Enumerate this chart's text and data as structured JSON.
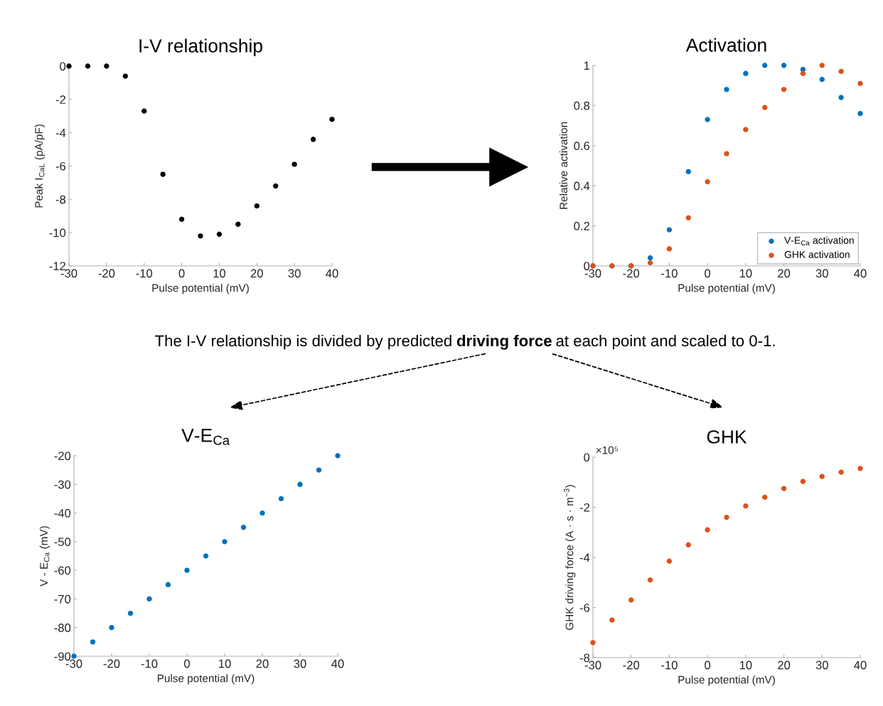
{
  "chart_data": [
    {
      "type": "scatter",
      "title": "I-V relationship",
      "xlabel": "Pulse potential (mV)",
      "ylabel": "Peak I$_{CaL}$ (pA/pF)",
      "x": [
        -30,
        -25,
        -20,
        -15,
        -10,
        -5,
        0,
        5,
        10,
        15,
        20,
        25,
        30,
        35,
        40
      ],
      "series": [
        {
          "color": "#000000",
          "values": [
            0,
            0,
            0,
            -0.6,
            -2.7,
            -6.5,
            -9.2,
            -10.2,
            -10.1,
            -9.5,
            -8.4,
            -7.2,
            -5.9,
            -4.4,
            -3.2
          ]
        }
      ],
      "xlim": [
        -30,
        40
      ],
      "xticks": [
        -30,
        -20,
        -10,
        0,
        10,
        20,
        30,
        40
      ],
      "ylim": [
        -12,
        0
      ],
      "yticks": [
        -12,
        -10,
        -8,
        -6,
        -4,
        -2,
        0
      ],
      "marker": "circle",
      "grid": false,
      "legend": false,
      "annotations": [
        "The I-V relationship is divided by predicted",
        "driving force",
        "at each point and scaled to 0-1."
      ]
    },
    {
      "type": "scatter",
      "title": "Activation",
      "xlabel": "Pulse potential (mV)",
      "ylabel": "Relative activation",
      "x": [
        -30,
        -25,
        -20,
        -15,
        -10,
        -5,
        0,
        5,
        10,
        15,
        20,
        25,
        30,
        35,
        40
      ],
      "series": [
        {
          "name": "V-E$_{Ca}$ activation",
          "color": "#0072bd",
          "values": [
            0,
            0,
            0,
            0.04,
            0.18,
            0.47,
            0.73,
            0.88,
            0.96,
            1,
            1,
            0.98,
            0.93,
            0.84,
            0.76
          ]
        },
        {
          "name": "GHK activation",
          "color": "#d95319",
          "values": [
            0,
            0,
            0,
            0.015,
            0.085,
            0.24,
            0.42,
            0.56,
            0.68,
            0.79,
            0.88,
            0.96,
            1,
            0.97,
            0.91
          ]
        }
      ],
      "xlim": [
        -30,
        40
      ],
      "xticks": [
        -30,
        -20,
        -10,
        0,
        10,
        20,
        30,
        40
      ],
      "ylim": [
        0,
        1
      ],
      "yticks": [
        0,
        0.2,
        0.4,
        0.6,
        0.8,
        1
      ],
      "marker": "circle",
      "grid": false,
      "legend": "bottom right"
    },
    {
      "type": "scatter",
      "title": "V-E$_{Ca}$",
      "xlabel": "Pulse potential (mV)",
      "ylabel": "V - E$_{Ca}$ (mV)",
      "x": [
        -30,
        -25,
        -20,
        -15,
        -10,
        -5,
        0,
        5,
        10,
        15,
        20,
        25,
        30,
        35,
        40
      ],
      "series": [
        {
          "color": "#0072bd",
          "values": [
            -90,
            -85,
            -80,
            -75,
            -70,
            -65,
            -60,
            -55,
            -50,
            -45,
            -40,
            -35,
            -30,
            -25,
            -20
          ]
        }
      ],
      "xlim": [
        -30,
        40
      ],
      "xticks": [
        -30,
        -20,
        -10,
        0,
        10,
        20,
        30,
        40
      ],
      "ylim": [
        -90,
        -20
      ],
      "yticks": [
        -90,
        -80,
        -70,
        -60,
        -50,
        -40,
        -30,
        -20
      ],
      "marker": "circle",
      "grid": false,
      "legend": false
    },
    {
      "type": "scatter",
      "title": "GHK",
      "xlabel": "Pulse potential (mV)",
      "ylabel": "GHK driving force (A · s · m$^{−3}$)",
      "x": [
        -30,
        -25,
        -20,
        -15,
        -10,
        -5,
        0,
        5,
        10,
        15,
        20,
        25,
        30,
        35,
        40
      ],
      "series": [
        {
          "color": "#d95319",
          "values": [
            -7.4,
            -6.5,
            -5.7,
            -4.9,
            -4.15,
            -3.5,
            -2.9,
            -2.4,
            -1.95,
            -1.6,
            -1.25,
            -0.97,
            -0.77,
            -0.6,
            -0.45
          ]
        }
      ],
      "xlim": [
        -30,
        40
      ],
      "xticks": [
        -30,
        -20,
        -10,
        0,
        10,
        20,
        30,
        40
      ],
      "ylim": [
        -8,
        0
      ],
      "yticks": [
        -8,
        -6,
        -4,
        -2,
        0
      ],
      "marker": "circle",
      "grid": false,
      "legend": false,
      "annotations": [
        "×10⁵"
      ]
    }
  ]
}
